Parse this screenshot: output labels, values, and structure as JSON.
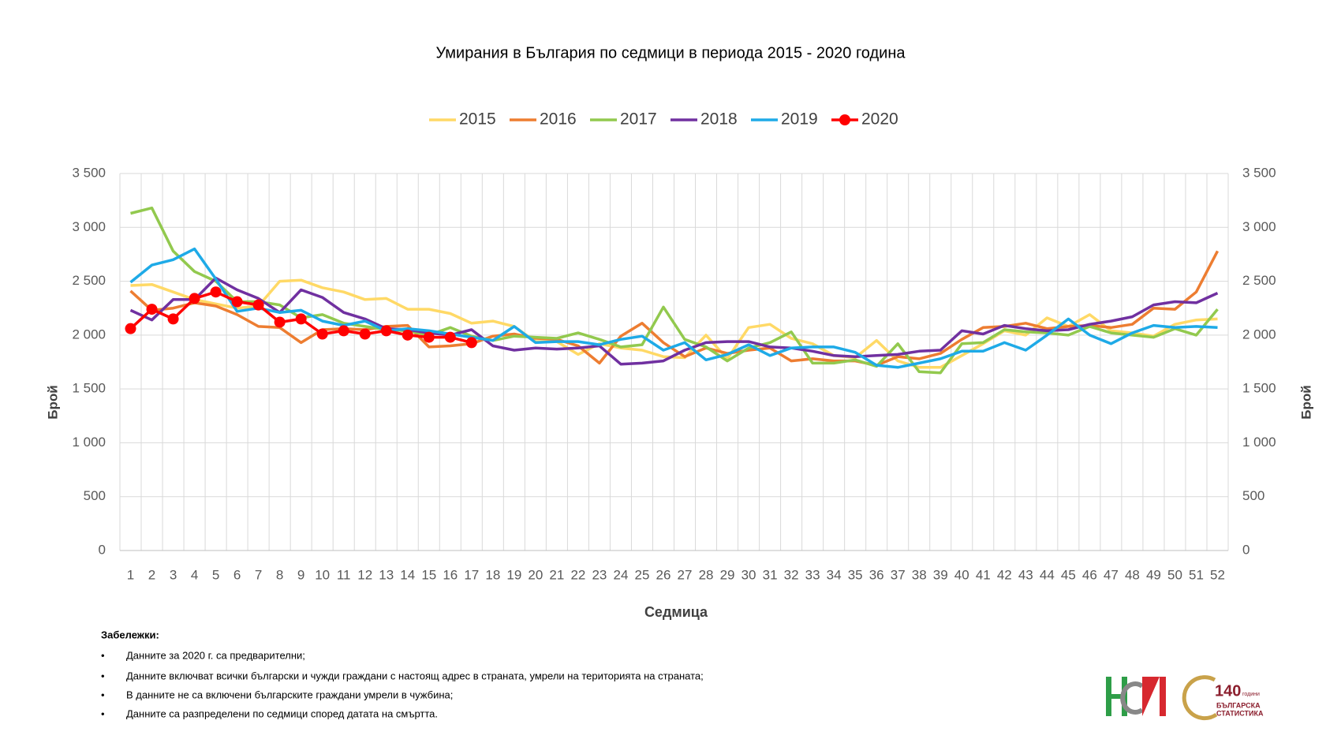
{
  "chart_data": {
    "type": "line",
    "title": "Умирания в България по седмици в периода 2015 - 2020 година",
    "x_label": "Седмица",
    "y_label": "Брой",
    "y2_label": "Брой",
    "categories": [
      "1",
      "2",
      "3",
      "4",
      "5",
      "6",
      "7",
      "8",
      "9",
      "10",
      "11",
      "12",
      "13",
      "14",
      "15",
      "16",
      "17",
      "18",
      "19",
      "20",
      "21",
      "22",
      "23",
      "24",
      "25",
      "26",
      "27",
      "28",
      "29",
      "30",
      "31",
      "32",
      "33",
      "34",
      "35",
      "36",
      "37",
      "38",
      "39",
      "40",
      "41",
      "42",
      "43",
      "44",
      "45",
      "46",
      "47",
      "48",
      "49",
      "50",
      "51",
      "52"
    ],
    "ylim": [
      0,
      3500
    ],
    "yticks": [
      0,
      500,
      {
        "value": 1000,
        "label": "1 000"
      },
      {
        "value": 1500,
        "label": "1 500"
      },
      {
        "value": 2000,
        "label": "2 000"
      },
      {
        "value": 2500,
        "label": "2 500"
      },
      {
        "value": 3000,
        "label": "3 000"
      },
      {
        "value": 3500,
        "label": "3 500"
      }
    ],
    "y2lim": [
      0,
      3500
    ],
    "y2ticks": [
      0,
      500,
      {
        "value": 1000,
        "label": "1 000"
      },
      {
        "value": 1500,
        "label": "1 500"
      },
      {
        "value": 2000,
        "label": "2 000"
      },
      {
        "value": 2500,
        "label": "2 500"
      },
      {
        "value": 3000,
        "label": "3 000"
      },
      {
        "value": 3500,
        "label": "3 500"
      }
    ],
    "grid": true,
    "legend": "top",
    "series": [
      {
        "name": "2015",
        "color": "#FFD966",
        "marker": false,
        "values": [
          2460,
          2470,
          2400,
          2330,
          2290,
          2250,
          2270,
          2500,
          2510,
          2440,
          2400,
          2330,
          2340,
          2240,
          2240,
          2200,
          2110,
          2130,
          2080,
          1940,
          1940,
          1820,
          1920,
          1880,
          1860,
          1800,
          1790,
          2000,
          1780,
          2070,
          2100,
          1970,
          1920,
          1810,
          1790,
          1950,
          1760,
          1700,
          1700,
          1810,
          1920,
          2040,
          2000,
          2160,
          2080,
          2190,
          2040,
          2020,
          1990,
          2100,
          2140,
          2150
        ]
      },
      {
        "name": "2016",
        "color": "#ED7D31",
        "marker": false,
        "values": [
          2410,
          2230,
          2250,
          2300,
          2270,
          2190,
          2080,
          2070,
          1930,
          2050,
          2060,
          2050,
          2080,
          2090,
          1890,
          1900,
          1920,
          1990,
          2010,
          1970,
          1960,
          1900,
          1740,
          1990,
          2110,
          1930,
          1800,
          1880,
          1830,
          1860,
          1880,
          1760,
          1780,
          1760,
          1760,
          1720,
          1800,
          1780,
          1830,
          1960,
          2070,
          2080,
          2110,
          2060,
          2080,
          2090,
          2070,
          2100,
          2250,
          2240,
          2400,
          2780
        ]
      },
      {
        "name": "2017",
        "color": "#92C94E",
        "marker": false,
        "values": [
          3130,
          3180,
          2780,
          2590,
          2500,
          2310,
          2310,
          2280,
          2160,
          2190,
          2110,
          2080,
          2050,
          2040,
          2000,
          2070,
          1990,
          1950,
          1990,
          1980,
          1970,
          2020,
          1960,
          1890,
          1910,
          2260,
          1960,
          1890,
          1760,
          1880,
          1930,
          2030,
          1740,
          1740,
          1770,
          1710,
          1920,
          1660,
          1650,
          1920,
          1930,
          2050,
          2030,
          2020,
          2000,
          2080,
          2020,
          2000,
          1980,
          2060,
          2000,
          2240
        ]
      },
      {
        "name": "2018",
        "color": "#7030A0",
        "marker": false,
        "values": [
          2230,
          2140,
          2330,
          2330,
          2530,
          2420,
          2340,
          2210,
          2420,
          2350,
          2210,
          2150,
          2060,
          2050,
          2020,
          2000,
          2050,
          1900,
          1860,
          1880,
          1870,
          1880,
          1900,
          1730,
          1740,
          1760,
          1860,
          1930,
          1940,
          1940,
          1890,
          1880,
          1850,
          1810,
          1800,
          1810,
          1820,
          1850,
          1860,
          2040,
          2010,
          2090,
          2060,
          2040,
          2050,
          2100,
          2130,
          2170,
          2280,
          2310,
          2300,
          2390
        ]
      },
      {
        "name": "2019",
        "color": "#1EAAE7",
        "marker": false,
        "values": [
          2490,
          2650,
          2700,
          2800,
          2520,
          2220,
          2250,
          2210,
          2230,
          2130,
          2090,
          2130,
          2040,
          2060,
          2040,
          2010,
          1980,
          1950,
          2080,
          1930,
          1940,
          1940,
          1910,
          1960,
          1990,
          1860,
          1930,
          1770,
          1820,
          1910,
          1810,
          1880,
          1890,
          1890,
          1840,
          1720,
          1700,
          1740,
          1780,
          1850,
          1850,
          1930,
          1860,
          2000,
          2150,
          2000,
          1920,
          2020,
          2090,
          2070,
          2080,
          2070
        ]
      },
      {
        "name": "2020",
        "color": "#FF0000",
        "marker": true,
        "values": [
          2060,
          2240,
          2150,
          2340,
          2400,
          2310,
          2280,
          2120,
          2150,
          2010,
          2040,
          2010,
          2040,
          2000,
          1980,
          1980,
          1930,
          null,
          null,
          null,
          null,
          null,
          null,
          null,
          null,
          null,
          null,
          null,
          null,
          null,
          null,
          null,
          null,
          null,
          null,
          null,
          null,
          null,
          null,
          null,
          null,
          null,
          null,
          null,
          null,
          null,
          null,
          null,
          null,
          null,
          null,
          null
        ]
      }
    ]
  },
  "notes": {
    "heading": "Забележки:",
    "items": [
      "Данните за 2020 г. са предварителни;",
      "Данните включват всички български и чужди граждани с настоящ адрес в страната, умрели на територията на страната;",
      "В данните не са включени българските граждани умрели в чужбина;",
      "Данните са разпределени по седмици според датата на смъртта."
    ]
  },
  "logo": {
    "number": "140",
    "years": "години",
    "line1": "БЪЛГАРСКА",
    "line2": "СТАТИСТИКА"
  }
}
